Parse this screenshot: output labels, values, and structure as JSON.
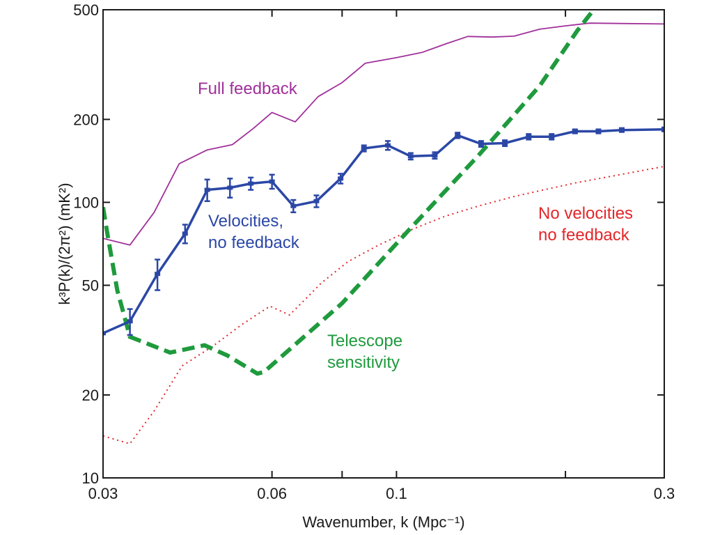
{
  "chart_data": {
    "type": "line",
    "title": "",
    "xlabel": "Wavenumber, k (Mpc⁻¹)",
    "ylabel": "k³P(k)/(2π²) (mK²)",
    "xscale": "log",
    "yscale": "log",
    "xlim": [
      0.03,
      0.3
    ],
    "ylim": [
      10,
      500
    ],
    "xticks": [
      0.03,
      0.06,
      0.1,
      0.3
    ],
    "xtick_labels": [
      "0.03",
      "0.06",
      "0.1",
      "0.3"
    ],
    "yticks": [
      10,
      20,
      50,
      100,
      200,
      500
    ],
    "ytick_labels": [
      "10",
      "20",
      "50",
      "100",
      "200",
      "500"
    ],
    "grid": false,
    "series": [
      {
        "name": "Full feedback",
        "color": "#a0309a",
        "style": "solid-thin",
        "x": [
          0.03,
          0.0335,
          0.037,
          0.041,
          0.046,
          0.051,
          0.0555,
          0.06,
          0.066,
          0.0725,
          0.08,
          0.088,
          0.1,
          0.111,
          0.122,
          0.134,
          0.148,
          0.162,
          0.18,
          0.2,
          0.221,
          0.3
        ],
        "y": [
          74,
          70,
          92,
          138,
          155,
          162,
          185,
          212,
          196,
          242,
          272,
          320,
          335,
          350,
          375,
          400,
          398,
          401,
          425,
          437,
          447,
          444
        ]
      },
      {
        "name": "Velocities, no feedback",
        "color": "#2b47a6",
        "style": "solid-errorbars",
        "x": [
          0.03,
          0.0335,
          0.0375,
          0.042,
          0.046,
          0.0505,
          0.055,
          0.06,
          0.0655,
          0.072,
          0.0795,
          0.0875,
          0.0965,
          0.106,
          0.117,
          0.1285,
          0.1415,
          0.156,
          0.172,
          0.189,
          0.208,
          0.229,
          0.252,
          0.3
        ],
        "y": [
          33.5,
          37,
          55,
          77,
          111,
          113,
          117,
          119,
          97,
          101,
          122,
          157,
          161,
          147,
          148,
          175,
          163,
          164,
          173,
          173,
          181,
          181,
          183,
          184
        ],
        "err": [
          0,
          4,
          7,
          6,
          10,
          9,
          6,
          7,
          5,
          5,
          5,
          4,
          6,
          4,
          4,
          4,
          4,
          4,
          4,
          4,
          3,
          3,
          3,
          3
        ]
      },
      {
        "name": "No velocities no feedback",
        "color": "#e3262a",
        "style": "dotted",
        "x": [
          0.03,
          0.0335,
          0.037,
          0.0415,
          0.047,
          0.053,
          0.0595,
          0.0645,
          0.0735,
          0.082,
          0.093,
          0.107,
          0.122,
          0.14,
          0.162,
          0.183,
          0.21,
          0.245,
          0.3
        ],
        "y": [
          14.2,
          13.3,
          17.5,
          25.5,
          30,
          36,
          42,
          39,
          51,
          61,
          70,
          80,
          89,
          97,
          105,
          111,
          118,
          125,
          135
        ]
      },
      {
        "name": "Telescope sensitivity",
        "color": "#1f9a3d",
        "style": "dashed-thick",
        "x": [
          0.03,
          0.0305,
          0.0318,
          0.0335,
          0.0395,
          0.0455,
          0.05,
          0.0565,
          0.058,
          0.08,
          0.105,
          0.14,
          0.18,
          0.21,
          0.228
        ],
        "y": [
          96,
          78,
          48,
          32.5,
          28.5,
          30.3,
          27.8,
          23.9,
          24.2,
          43,
          79,
          148,
          265,
          420,
          520
        ]
      }
    ],
    "annotations": [
      {
        "text": "Full feedback",
        "color": "#a0309a"
      },
      {
        "text": "Velocities,",
        "color": "#2b47a6"
      },
      {
        "text": "no feedback",
        "color": "#2b47a6"
      },
      {
        "text": "No velocities",
        "color": "#e3262a"
      },
      {
        "text": "no feedback",
        "color": "#e3262a"
      },
      {
        "text": "Telescope",
        "color": "#1f9a3d"
      },
      {
        "text": "sensitivity",
        "color": "#1f9a3d"
      }
    ]
  }
}
